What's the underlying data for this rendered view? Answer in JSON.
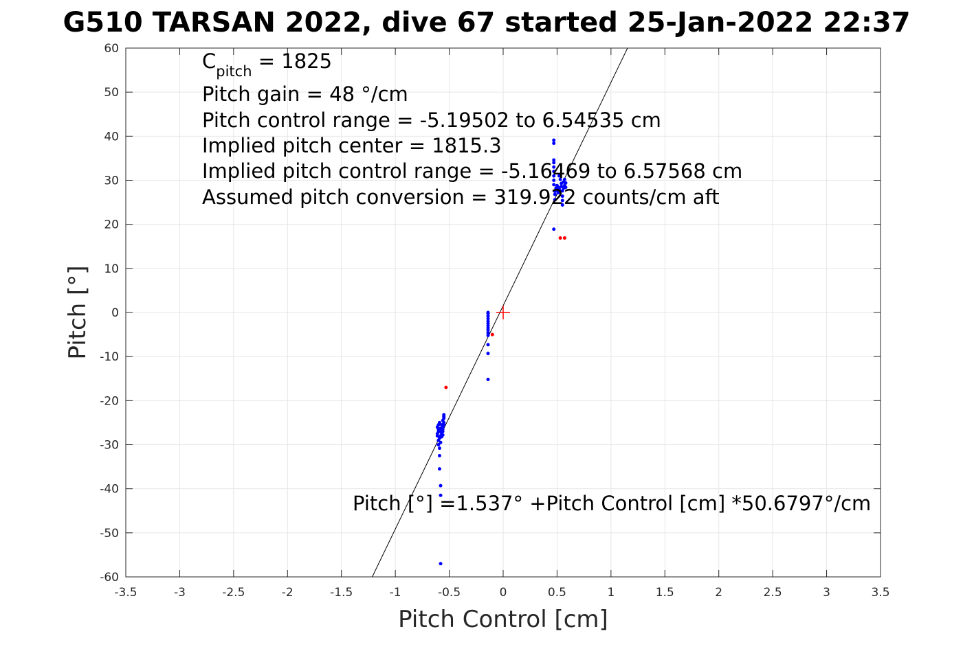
{
  "chart_data": {
    "type": "scatter",
    "title": "G510 TARSAN 2022, dive 67 started 25-Jan-2022 22:37",
    "xlabel": "Pitch Control [cm]",
    "ylabel": "Pitch [°]",
    "xlim": [
      -3.5,
      3.5
    ],
    "ylim": [
      -60,
      60
    ],
    "xticks": [
      -3.5,
      -3,
      -2.5,
      -2,
      -1.5,
      -1,
      -0.5,
      0,
      0.5,
      1,
      1.5,
      2,
      2.5,
      3,
      3.5
    ],
    "xtick_labels": [
      "-3.5",
      "-3",
      "-2.5",
      "-2",
      "-1.5",
      "-1",
      "-0.5",
      "0",
      "0.5",
      "1",
      "1.5",
      "2",
      "2.5",
      "3",
      "3.5"
    ],
    "yticks": [
      -60,
      -50,
      -40,
      -30,
      -20,
      -10,
      0,
      10,
      20,
      30,
      40,
      50,
      60
    ],
    "ytick_labels": [
      "-60",
      "-50",
      "-40",
      "-30",
      "-20",
      "-10",
      "0",
      "10",
      "20",
      "30",
      "40",
      "50",
      "60"
    ],
    "grid": true,
    "annotations": {
      "c_pitch_main": "C",
      "c_pitch_sub": "pitch",
      "c_pitch_value": " = 1825",
      "lines": [
        "Pitch gain = 48 °/cm",
        "Pitch control range = -5.19502 to 6.54535 cm",
        "Implied pitch center = 1815.3",
        "Implied pitch control range = -5.16469 to 6.57568 cm",
        "Assumed pitch conversion = 319.922 counts/cm aft"
      ],
      "fit_equation": "Pitch [°] =1.537° +Pitch Control [cm] *50.6797°/cm"
    },
    "fit_line": {
      "intercept": 1.537,
      "slope": 50.6797,
      "color": "#000000"
    },
    "center_marker": {
      "x": 0,
      "y": 0,
      "color": "#ff0000"
    },
    "series": [
      {
        "color": "#0000ff",
        "points": [
          [
            -0.58,
            -57
          ],
          [
            -0.58,
            -41.5
          ],
          [
            -0.58,
            -39.3
          ],
          [
            -0.59,
            -35.5
          ],
          [
            -0.59,
            -32.5
          ],
          [
            -0.59,
            -30.8
          ],
          [
            -0.6,
            -30
          ],
          [
            -0.6,
            -29
          ],
          [
            -0.61,
            -28
          ],
          [
            -0.61,
            -27.5
          ],
          [
            -0.6,
            -27
          ],
          [
            -0.6,
            -26.5
          ],
          [
            -0.61,
            -26
          ],
          [
            -0.6,
            -25.5
          ],
          [
            -0.59,
            -25
          ],
          [
            -0.59,
            -28.5
          ],
          [
            -0.58,
            -29.5
          ],
          [
            -0.58,
            -28
          ],
          [
            -0.57,
            -27.5
          ],
          [
            -0.57,
            -26.8
          ],
          [
            -0.56,
            -27
          ],
          [
            -0.56,
            -26.5
          ],
          [
            -0.56,
            -26
          ],
          [
            -0.55,
            -25.5
          ],
          [
            -0.55,
            -25
          ],
          [
            -0.56,
            -24.5
          ],
          [
            -0.55,
            -24
          ],
          [
            -0.55,
            -23.6
          ],
          [
            -0.55,
            -23.2
          ],
          [
            -0.57,
            -25.5
          ],
          [
            -0.58,
            -26.3
          ],
          [
            -0.57,
            -28.2
          ],
          [
            -0.56,
            -27.8
          ],
          [
            -0.59,
            -27
          ],
          [
            -0.14,
            -15.2
          ],
          [
            -0.14,
            -9.3
          ],
          [
            -0.14,
            -7.3
          ],
          [
            -0.14,
            -5.2
          ],
          [
            -0.14,
            -4.6
          ],
          [
            -0.14,
            -4
          ],
          [
            -0.14,
            -3.5
          ],
          [
            -0.14,
            -3
          ],
          [
            -0.14,
            -2.5
          ],
          [
            -0.14,
            -2
          ],
          [
            -0.14,
            -1.4
          ],
          [
            -0.14,
            -0.8
          ],
          [
            -0.14,
            -0.2
          ],
          [
            -0.14,
            0
          ],
          [
            0.47,
            18.9
          ],
          [
            0.48,
            25.6
          ],
          [
            0.48,
            26.8
          ],
          [
            0.48,
            27.5
          ],
          [
            0.49,
            28.2
          ],
          [
            0.5,
            28.8
          ],
          [
            0.5,
            27.8
          ],
          [
            0.51,
            28.4
          ],
          [
            0.51,
            27.2
          ],
          [
            0.52,
            28
          ],
          [
            0.53,
            27.4
          ],
          [
            0.54,
            28.6
          ],
          [
            0.54,
            29.3
          ],
          [
            0.55,
            27.6
          ],
          [
            0.55,
            26.4
          ],
          [
            0.55,
            25.4
          ],
          [
            0.55,
            24.4
          ],
          [
            0.56,
            28.2
          ],
          [
            0.56,
            29.6
          ],
          [
            0.57,
            28.8
          ],
          [
            0.57,
            30.2
          ],
          [
            0.58,
            29.4
          ],
          [
            0.58,
            28.4
          ],
          [
            0.47,
            29
          ],
          [
            0.47,
            30
          ],
          [
            0.47,
            31
          ],
          [
            0.47,
            32
          ],
          [
            0.47,
            33
          ],
          [
            0.47,
            34
          ],
          [
            0.47,
            34.6
          ],
          [
            0.47,
            38.4
          ],
          [
            0.47,
            39.1
          ],
          [
            0.52,
            31
          ],
          [
            0.53,
            30.2
          ]
        ]
      },
      {
        "color": "#ff0000",
        "points": [
          [
            -0.53,
            -17
          ],
          [
            -0.1,
            -5
          ],
          [
            0.53,
            16.9
          ],
          [
            0.57,
            16.9
          ]
        ]
      }
    ]
  },
  "colors": {
    "axis": "#262626",
    "grid": "#e6e6e6",
    "blue": "#0000ff",
    "red": "#ff0000"
  }
}
